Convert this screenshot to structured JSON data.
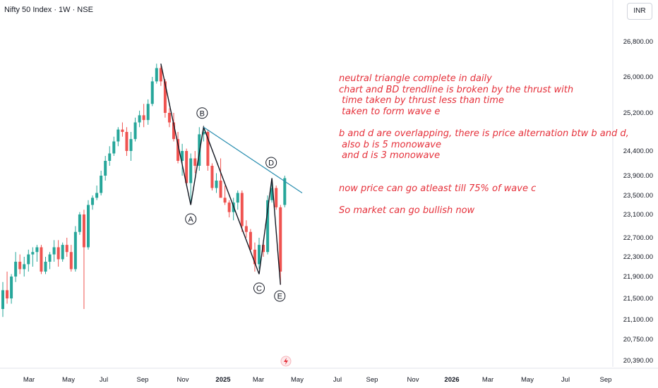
{
  "header": {
    "title": "Nifty 50 Index · 1W · NSE",
    "currency": "INR"
  },
  "annotation": {
    "lines": [
      "neutral triangle complete in daily",
      "chart and BD trendline is broken by the thrust with",
      " time taken by thrust less than time",
      " taken to form wave e",
      "",
      "b and d are overlapping, there is price alternation btw b and d,",
      " also b is 5 monowave",
      " and d is 3 monowave",
      "",
      "",
      "now price can go atleast till 75% of wave c",
      "",
      "So market can go bullish now"
    ]
  },
  "colors": {
    "up": "#26a69a",
    "down": "#ef5350",
    "trendline": "#2a8eb0",
    "wave_line": "#131722",
    "annotation": "#e5303a"
  },
  "chart_data": {
    "type": "candlestick",
    "y_axis": {
      "ticks": [
        "26,800.00",
        "26,000.00",
        "25,200.00",
        "24,400.00",
        "23,900.00",
        "23,500.00",
        "23,100.00",
        "22,700.00",
        "22,300.00",
        "21,900.00",
        "21,500.00",
        "21,100.00",
        "20,750.00",
        "20,390.00"
      ]
    },
    "x_axis": {
      "labels": [
        "Mar",
        "May",
        "Jul",
        "Sep",
        "Nov",
        "2025",
        "Mar",
        "May",
        "Jul",
        "Sep",
        "Nov",
        "2026",
        "Mar",
        "May",
        "Jul",
        "Sep"
      ]
    },
    "candles": [
      {
        "o": 21300,
        "h": 21800,
        "l": 21150,
        "c": 21650
      },
      {
        "o": 21650,
        "h": 22000,
        "l": 21400,
        "c": 21500
      },
      {
        "o": 21500,
        "h": 21950,
        "l": 21400,
        "c": 21900
      },
      {
        "o": 21900,
        "h": 22400,
        "l": 21800,
        "c": 22200
      },
      {
        "o": 22200,
        "h": 22350,
        "l": 21950,
        "c": 22050
      },
      {
        "o": 22050,
        "h": 22300,
        "l": 21900,
        "c": 22150
      },
      {
        "o": 22150,
        "h": 22450,
        "l": 22000,
        "c": 22350
      },
      {
        "o": 22350,
        "h": 22500,
        "l": 22100,
        "c": 22400
      },
      {
        "o": 22400,
        "h": 22550,
        "l": 22200,
        "c": 22500
      },
      {
        "o": 22500,
        "h": 22550,
        "l": 21950,
        "c": 22000
      },
      {
        "o": 22000,
        "h": 22300,
        "l": 21950,
        "c": 22200
      },
      {
        "o": 22200,
        "h": 22400,
        "l": 22050,
        "c": 22350
      },
      {
        "o": 22350,
        "h": 22650,
        "l": 22200,
        "c": 22500
      },
      {
        "o": 22500,
        "h": 22650,
        "l": 22100,
        "c": 22250
      },
      {
        "o": 22250,
        "h": 22600,
        "l": 22200,
        "c": 22550
      },
      {
        "o": 22550,
        "h": 22700,
        "l": 22300,
        "c": 22400
      },
      {
        "o": 22400,
        "h": 22550,
        "l": 22000,
        "c": 22050
      },
      {
        "o": 22050,
        "h": 22900,
        "l": 22000,
        "c": 22800
      },
      {
        "o": 22800,
        "h": 23150,
        "l": 22750,
        "c": 23100
      },
      {
        "o": 23100,
        "h": 23200,
        "l": 21300,
        "c": 22500
      },
      {
        "o": 22500,
        "h": 23400,
        "l": 22450,
        "c": 23300
      },
      {
        "o": 23300,
        "h": 23500,
        "l": 23200,
        "c": 23450
      },
      {
        "o": 23450,
        "h": 23700,
        "l": 23400,
        "c": 23550
      },
      {
        "o": 23550,
        "h": 24000,
        "l": 23500,
        "c": 23900
      },
      {
        "o": 23900,
        "h": 24300,
        "l": 23800,
        "c": 24200
      },
      {
        "o": 24200,
        "h": 24500,
        "l": 24100,
        "c": 24350
      },
      {
        "o": 24350,
        "h": 24700,
        "l": 24300,
        "c": 24600
      },
      {
        "o": 24600,
        "h": 24900,
        "l": 24500,
        "c": 24850
      },
      {
        "o": 24850,
        "h": 25000,
        "l": 24700,
        "c": 24800
      },
      {
        "o": 24800,
        "h": 24900,
        "l": 24300,
        "c": 24400
      },
      {
        "o": 24400,
        "h": 24800,
        "l": 24200,
        "c": 24650
      },
      {
        "o": 24650,
        "h": 25100,
        "l": 24600,
        "c": 25000
      },
      {
        "o": 25000,
        "h": 25250,
        "l": 24900,
        "c": 25150
      },
      {
        "o": 25150,
        "h": 25400,
        "l": 24900,
        "c": 25050
      },
      {
        "o": 25050,
        "h": 25500,
        "l": 24950,
        "c": 25400
      },
      {
        "o": 25400,
        "h": 26000,
        "l": 25350,
        "c": 25900
      },
      {
        "o": 25900,
        "h": 26300,
        "l": 25850,
        "c": 26200
      },
      {
        "o": 26200,
        "h": 26250,
        "l": 25800,
        "c": 25900
      },
      {
        "o": 25900,
        "h": 25950,
        "l": 25100,
        "c": 25200
      },
      {
        "o": 25200,
        "h": 25300,
        "l": 24900,
        "c": 25000
      },
      {
        "o": 25000,
        "h": 25200,
        "l": 24600,
        "c": 24650
      },
      {
        "o": 24650,
        "h": 24800,
        "l": 24150,
        "c": 24200
      },
      {
        "o": 24200,
        "h": 24550,
        "l": 23900,
        "c": 24400
      },
      {
        "o": 24400,
        "h": 24450,
        "l": 23700,
        "c": 23750
      },
      {
        "o": 23750,
        "h": 24350,
        "l": 23300,
        "c": 24250
      },
      {
        "o": 24250,
        "h": 24400,
        "l": 23950,
        "c": 24100
      },
      {
        "o": 24100,
        "h": 24900,
        "l": 24000,
        "c": 24750
      },
      {
        "o": 24750,
        "h": 24900,
        "l": 24600,
        "c": 24800
      },
      {
        "o": 24800,
        "h": 24850,
        "l": 24000,
        "c": 24100
      },
      {
        "o": 24100,
        "h": 24150,
        "l": 23600,
        "c": 23650
      },
      {
        "o": 23650,
        "h": 23950,
        "l": 23550,
        "c": 23800
      },
      {
        "o": 23800,
        "h": 24250,
        "l": 23500,
        "c": 23450
      },
      {
        "o": 23450,
        "h": 23700,
        "l": 23300,
        "c": 23350
      },
      {
        "o": 23350,
        "h": 23400,
        "l": 23050,
        "c": 23150
      },
      {
        "o": 23150,
        "h": 23450,
        "l": 23000,
        "c": 23350
      },
      {
        "o": 23350,
        "h": 23600,
        "l": 23200,
        "c": 23550
      },
      {
        "o": 23550,
        "h": 23600,
        "l": 22800,
        "c": 22900
      },
      {
        "o": 22900,
        "h": 23000,
        "l": 22700,
        "c": 22800
      },
      {
        "o": 22800,
        "h": 22850,
        "l": 22400,
        "c": 22450
      },
      {
        "o": 22450,
        "h": 22600,
        "l": 22000,
        "c": 22150
      },
      {
        "o": 22150,
        "h": 22700,
        "l": 22050,
        "c": 22550
      },
      {
        "o": 22550,
        "h": 22650,
        "l": 22300,
        "c": 22400
      },
      {
        "o": 22400,
        "h": 23500,
        "l": 22350,
        "c": 23400
      },
      {
        "o": 23400,
        "h": 23850,
        "l": 23350,
        "c": 23650
      },
      {
        "o": 23650,
        "h": 23700,
        "l": 23200,
        "c": 23250
      },
      {
        "o": 23250,
        "h": 23300,
        "l": 21750,
        "c": 22000
      },
      {
        "o": 23300,
        "h": 23900,
        "l": 23250,
        "c": 23850
      }
    ],
    "waves": [
      {
        "label": "A",
        "price": 23300
      },
      {
        "label": "B",
        "price": 24900
      },
      {
        "label": "C",
        "price": 21950
      },
      {
        "label": "D",
        "price": 23850
      },
      {
        "label": "E",
        "price": 21750
      }
    ],
    "trendline": {
      "from": 24900,
      "to": 23550
    }
  }
}
